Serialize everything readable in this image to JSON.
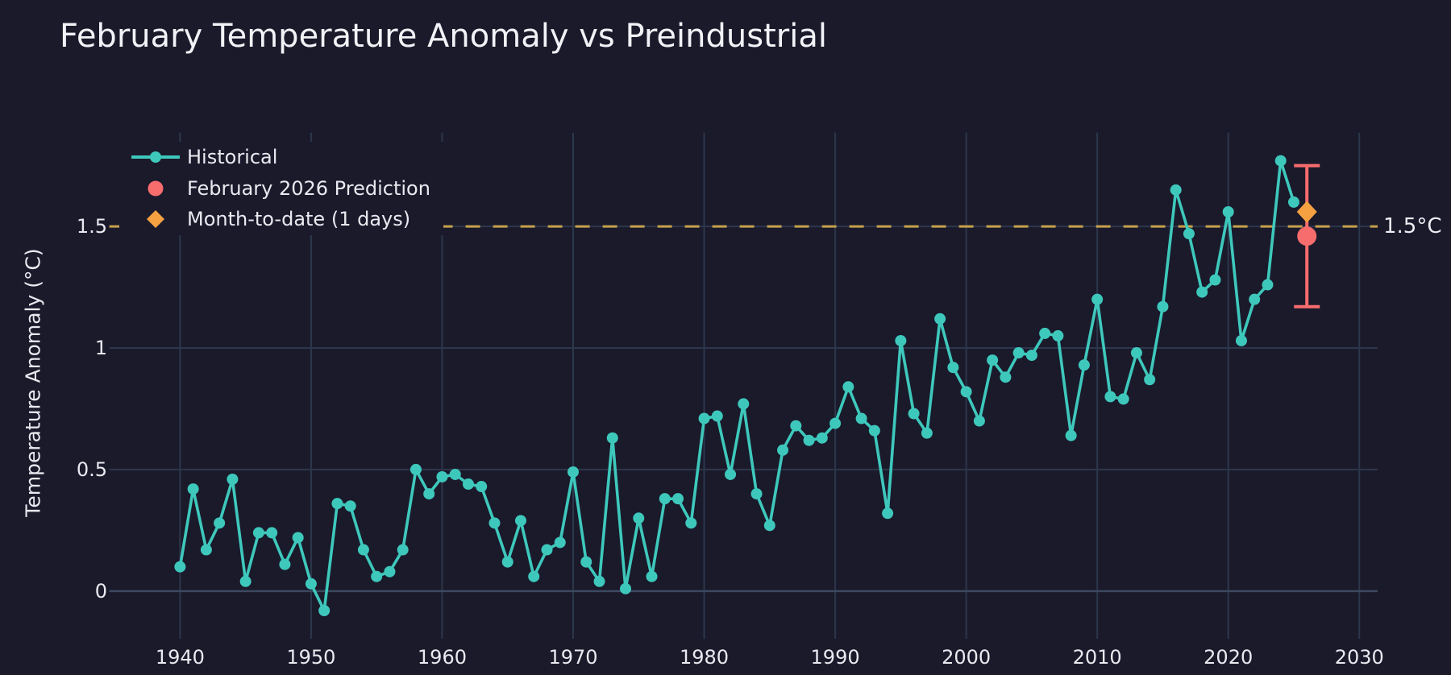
{
  "chart_data": {
    "type": "line",
    "title": "February Temperature Anomaly vs Preindustrial",
    "xlabel": "",
    "ylabel": "Temperature Anomaly (°C)",
    "x_range": [
      1934.6,
      2031.4
    ],
    "y_range": [
      -0.196,
      1.886
    ],
    "x_ticks": [
      1940,
      1950,
      1960,
      1970,
      1980,
      1990,
      2000,
      2010,
      2020,
      2030
    ],
    "y_ticks": [
      0,
      0.5,
      1,
      1.5
    ],
    "y_tick_labels": [
      "0",
      "0.5",
      "1",
      "1.5"
    ],
    "grid": true,
    "legend_position": "top-left",
    "series": [
      {
        "name": "Historical",
        "color": "#3ec8bc",
        "years": [
          1940,
          1941,
          1942,
          1943,
          1944,
          1945,
          1946,
          1947,
          1948,
          1949,
          1950,
          1951,
          1952,
          1953,
          1954,
          1955,
          1956,
          1957,
          1958,
          1959,
          1960,
          1961,
          1962,
          1963,
          1964,
          1965,
          1966,
          1967,
          1968,
          1969,
          1970,
          1971,
          1972,
          1973,
          1974,
          1975,
          1976,
          1977,
          1978,
          1979,
          1980,
          1981,
          1982,
          1983,
          1984,
          1985,
          1986,
          1987,
          1988,
          1989,
          1990,
          1991,
          1992,
          1993,
          1994,
          1995,
          1996,
          1997,
          1998,
          1999,
          2000,
          2001,
          2002,
          2003,
          2004,
          2005,
          2006,
          2007,
          2008,
          2009,
          2010,
          2011,
          2012,
          2013,
          2014,
          2015,
          2016,
          2017,
          2018,
          2019,
          2020,
          2021,
          2022,
          2023,
          2024,
          2025
        ],
        "values": [
          0.1,
          0.42,
          0.17,
          0.28,
          0.46,
          0.04,
          0.24,
          0.24,
          0.11,
          0.22,
          0.03,
          -0.08,
          0.36,
          0.35,
          0.17,
          0.06,
          0.08,
          0.17,
          0.5,
          0.4,
          0.47,
          0.48,
          0.44,
          0.43,
          0.28,
          0.12,
          0.29,
          0.06,
          0.17,
          0.2,
          0.49,
          0.12,
          0.04,
          0.63,
          0.01,
          0.3,
          0.06,
          0.38,
          0.38,
          0.28,
          0.71,
          0.72,
          0.48,
          0.77,
          0.4,
          0.27,
          0.58,
          0.68,
          0.62,
          0.63,
          0.69,
          0.84,
          0.71,
          0.66,
          0.32,
          1.03,
          0.73,
          0.65,
          1.12,
          0.92,
          0.82,
          0.7,
          0.95,
          0.88,
          0.98,
          0.97,
          1.06,
          1.05,
          0.64,
          0.93,
          1.2,
          0.8,
          0.79,
          0.98,
          0.87,
          1.17,
          1.65,
          1.47,
          1.23,
          1.28,
          1.56,
          1.03,
          1.2,
          1.26,
          1.77,
          1.6
        ]
      }
    ],
    "prediction": {
      "name": "February 2026 Prediction",
      "color": "#f76c6c",
      "year": 2026,
      "value": 1.46,
      "error_low": 1.17,
      "error_high": 1.75
    },
    "month_to_date": {
      "name": "Month-to-date (1 days)",
      "color": "#f5a142",
      "year": 2026,
      "value": 1.56
    },
    "threshold": {
      "value": 1.5,
      "label": "1.5°C",
      "color": "#c7a24c"
    },
    "colors": {
      "background": "#1a1a2b",
      "grid": "#2d374b",
      "zeroline": "#3c485f",
      "tick_text": "#e9e9f0",
      "title_text": "#f2f2f7"
    }
  }
}
